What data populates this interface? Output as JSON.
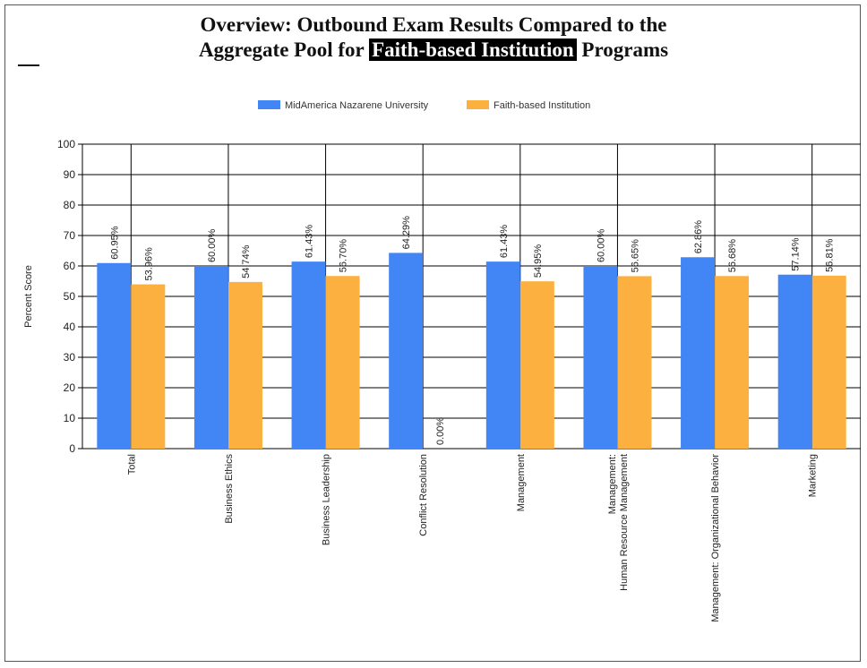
{
  "header": {
    "title_line1": "Overview: Outbound Exam Results Compared to the",
    "title_line2_prefix": "Aggregate Pool for",
    "title_line2_highlight": "Faith-based Institution",
    "title_line2_suffix": "Programs"
  },
  "chart_data": {
    "type": "bar",
    "title": "Overview: Outbound Exam Results Compared to the Aggregate Pool for Faith-based Institution Programs",
    "ylabel": "Percent Score",
    "xlabel": "",
    "ylim": [
      0,
      100
    ],
    "yticks": [
      0,
      10,
      20,
      30,
      40,
      50,
      60,
      70,
      80,
      90,
      100
    ],
    "grid": true,
    "legend_position": "top-center",
    "categories": [
      "Total",
      "Business Ethics",
      "Business Leadership",
      "Conflict Resolution",
      "Management",
      [
        "Management:",
        "Human Resource Management"
      ],
      "Management: Organizational Behavior",
      "Marketing"
    ],
    "series": [
      {
        "name": "MidAmerica Nazarene University",
        "color": "#4285f4",
        "values": [
          60.95,
          60.0,
          61.43,
          64.29,
          61.43,
          60.0,
          62.86,
          57.14
        ],
        "labels": [
          "60.95%",
          "60.00%",
          "61.43%",
          "64.29%",
          "61.43%",
          "60.00%",
          "62.86%",
          "57.14%"
        ]
      },
      {
        "name": "Faith-based  Institution",
        "color": "#fbb040",
        "values": [
          53.96,
          54.74,
          56.7,
          0.0,
          54.95,
          56.65,
          56.68,
          56.81
        ],
        "labels": [
          "53.96%",
          "54.74%",
          "56.70%",
          "0.00%",
          "54.95%",
          "56.65%",
          "56.68%",
          "56.81%"
        ]
      }
    ]
  }
}
